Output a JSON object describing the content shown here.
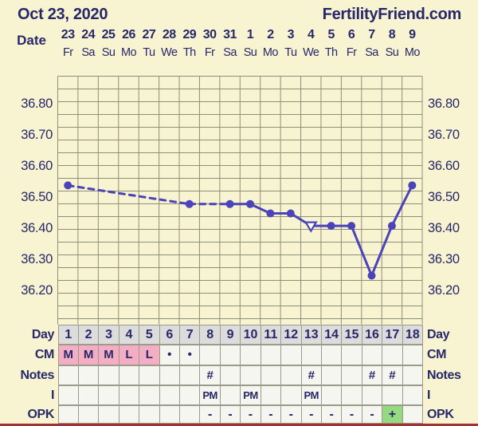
{
  "header": {
    "date_title": "Oct 23, 2020",
    "brand": "FertilityFriend.com"
  },
  "date_axis": {
    "label": "Date",
    "dates": [
      "23",
      "24",
      "25",
      "26",
      "27",
      "28",
      "29",
      "30",
      "31",
      "1",
      "2",
      "3",
      "4",
      "5",
      "6",
      "7",
      "8",
      "9"
    ],
    "weekdays": [
      "Fr",
      "Sa",
      "Su",
      "Mo",
      "Tu",
      "We",
      "Th",
      "Fr",
      "Sa",
      "Su",
      "Mo",
      "Tu",
      "We",
      "Th",
      "Fr",
      "Sa",
      "Su",
      "Mo"
    ]
  },
  "temp_axis": {
    "labels": [
      "36.80",
      "36.70",
      "36.60",
      "36.50",
      "36.40",
      "36.30",
      "36.20"
    ]
  },
  "chart_data": {
    "type": "line",
    "title": "",
    "categories": [
      1,
      2,
      3,
      4,
      5,
      6,
      7,
      8,
      9,
      10,
      11,
      12,
      13,
      14,
      15,
      16,
      17,
      18
    ],
    "values": [
      36.54,
      null,
      null,
      null,
      null,
      null,
      36.48,
      null,
      36.48,
      36.48,
      36.45,
      36.45,
      36.41,
      36.41,
      36.41,
      36.25,
      36.41,
      36.54
    ],
    "yticks": [
      36.8,
      36.7,
      36.6,
      36.5,
      36.4,
      36.3,
      36.2
    ],
    "ylim": [
      36.11,
      36.88
    ],
    "grid": true,
    "open_triangle_day": 13,
    "missing_data_connection": "dashed",
    "line_color": "#4b43ba"
  },
  "table": {
    "rows": [
      {
        "name": "day",
        "label": "Day",
        "cells": [
          "1",
          "2",
          "3",
          "4",
          "5",
          "6",
          "7",
          "8",
          "9",
          "10",
          "11",
          "12",
          "13",
          "14",
          "15",
          "16",
          "17",
          "18"
        ],
        "highlight": {
          "color": "gray",
          "days": [
            1,
            2,
            3,
            4,
            5,
            6,
            7,
            8,
            9,
            10,
            11,
            12,
            13,
            14,
            15,
            16,
            17,
            18
          ]
        }
      },
      {
        "name": "cm",
        "label": "CM",
        "cells": [
          "M",
          "M",
          "M",
          "L",
          "L",
          "•",
          "•",
          "",
          "",
          "",
          "",
          "",
          "",
          "",
          "",
          "",
          "",
          ""
        ],
        "highlight": {
          "color": "pink",
          "days": [
            1,
            2,
            3,
            4,
            5
          ]
        }
      },
      {
        "name": "notes",
        "label": "Notes",
        "cells": [
          "",
          "",
          "",
          "",
          "",
          "",
          "",
          "#",
          "",
          "",
          "",
          "",
          "#",
          "",
          "",
          "#",
          "#",
          ""
        ],
        "highlight": null
      },
      {
        "name": "i",
        "label": "I",
        "cells": [
          "",
          "",
          "",
          "",
          "",
          "",
          "",
          "PM",
          "",
          "PM",
          "",
          "",
          "PM",
          "",
          "",
          "",
          "",
          ""
        ],
        "highlight": null
      },
      {
        "name": "opk",
        "label": "OPK",
        "cells": [
          "",
          "",
          "",
          "",
          "",
          "",
          "",
          "-",
          "-",
          "-",
          "-",
          "-",
          "-",
          "-",
          "-",
          "-",
          "+",
          ""
        ],
        "highlight": {
          "color": "green",
          "days": [
            17
          ]
        }
      }
    ]
  },
  "colors": {
    "background": "#f8f4d2",
    "ink": "#27276a",
    "line": "#4b43ba",
    "grid": "#8e8e79",
    "cell": "#f6f6f0",
    "gray": "#dcdcdc",
    "pink": "#f4aec3",
    "green": "#93da81",
    "red_strip": "#a23232"
  }
}
